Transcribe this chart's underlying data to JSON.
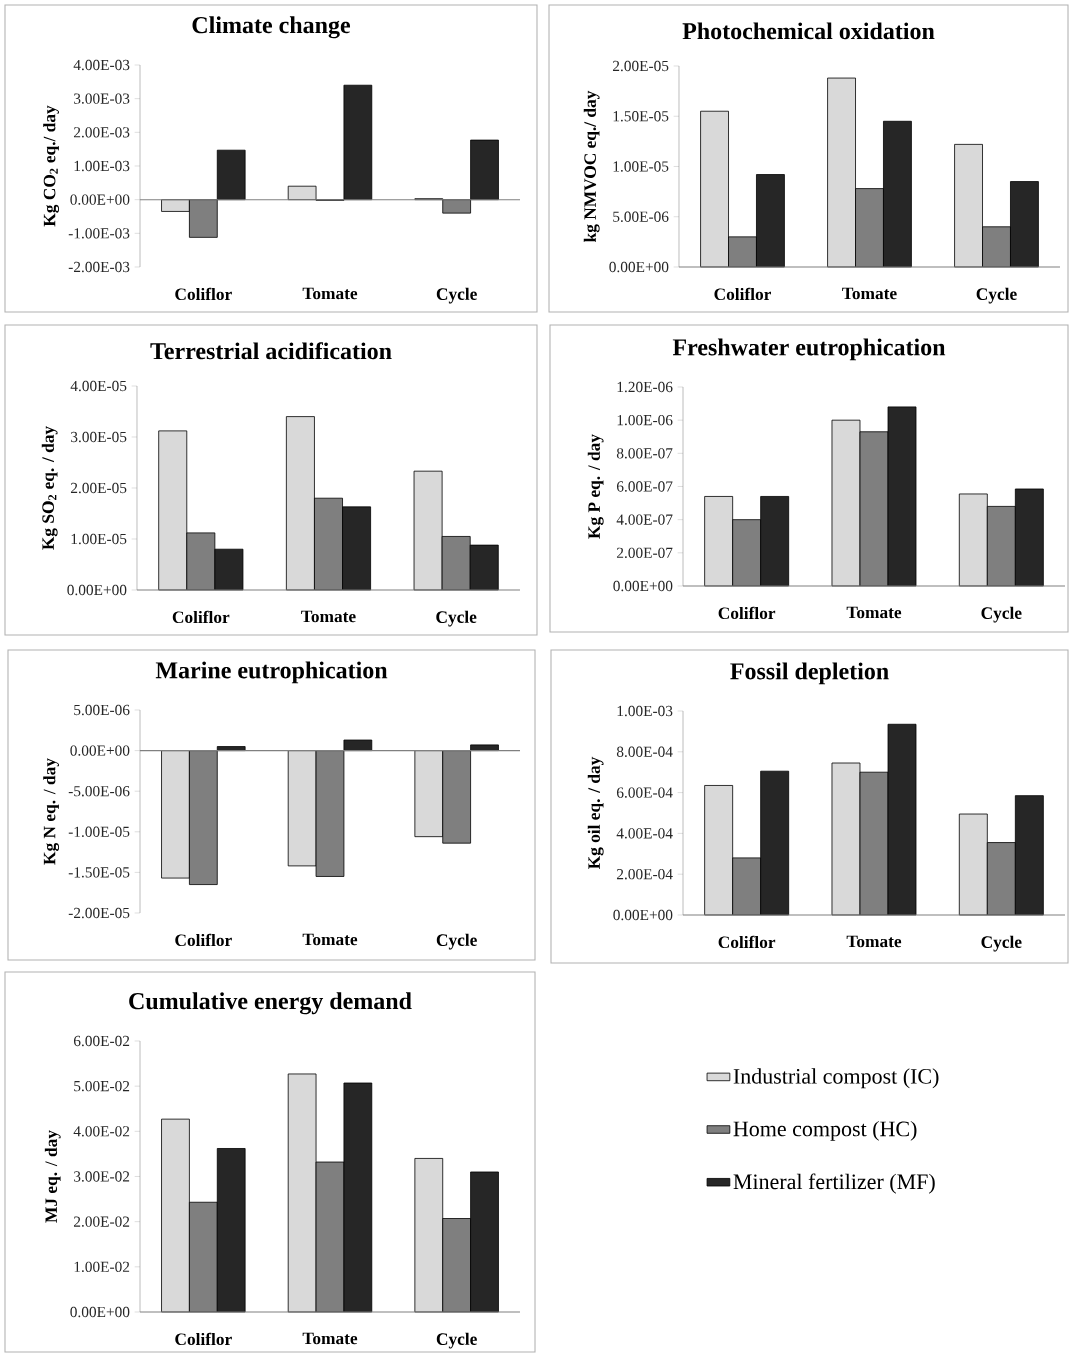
{
  "chart_data": [
    {
      "type": "bar",
      "title": "Climate change",
      "ylabel": "Kg CO$_{2}$ eq./ day",
      "categories": [
        "Coliflor",
        "Tomate",
        "Cycle"
      ],
      "ylim": [
        -0.002,
        0.004
      ],
      "yticks": [
        {
          "value": -0.002,
          "label": "-2.00E-03"
        },
        {
          "value": -0.001,
          "label": "-1.00E-03"
        },
        {
          "value": 0,
          "label": "0.00E+00"
        },
        {
          "value": 0.001,
          "label": "1.00E-03"
        },
        {
          "value": 0.002,
          "label": "2.00E-03"
        },
        {
          "value": 0.003,
          "label": "3.00E-03"
        },
        {
          "value": 0.004,
          "label": "4.00E-03"
        }
      ],
      "series": [
        {
          "color": "#d9d9d9",
          "values": [
            -0.00035,
            0.0004,
            3e-05
          ]
        },
        {
          "color": "#7f7f7f",
          "values": [
            -0.00112,
            -2e-05,
            -0.0004
          ]
        },
        {
          "color": "#262626",
          "values": [
            0.00147,
            0.0034,
            0.00177
          ]
        }
      ]
    },
    {
      "type": "bar",
      "title": "Photochemical oxidation",
      "ylabel": "kg NMVOC eq./ day",
      "categories": [
        "Coliflor",
        "Tomate",
        "Cycle"
      ],
      "ylim": [
        0,
        2e-05
      ],
      "yticks": [
        {
          "value": 0,
          "label": "0.00E+00"
        },
        {
          "value": 5e-06,
          "label": "5.00E-06"
        },
        {
          "value": 1e-05,
          "label": "1.00E-05"
        },
        {
          "value": 1.5e-05,
          "label": "1.50E-05"
        },
        {
          "value": 2e-05,
          "label": "2.00E-05"
        }
      ],
      "series": [
        {
          "color": "#d9d9d9",
          "values": [
            1.55e-05,
            1.88e-05,
            1.22e-05
          ]
        },
        {
          "color": "#7f7f7f",
          "values": [
            3e-06,
            7.8e-06,
            4e-06
          ]
        },
        {
          "color": "#262626",
          "values": [
            9.2e-06,
            1.45e-05,
            8.5e-06
          ]
        }
      ]
    },
    {
      "type": "bar",
      "title": "Terrestrial acidification",
      "ylabel": "Kg SO$_{2}$ eq. / day",
      "categories": [
        "Coliflor",
        "Tomate",
        "Cycle"
      ],
      "ylim": [
        0,
        4e-05
      ],
      "yticks": [
        {
          "value": 0,
          "label": "0.00E+00"
        },
        {
          "value": 1e-05,
          "label": "1.00E-05"
        },
        {
          "value": 2e-05,
          "label": "2.00E-05"
        },
        {
          "value": 3e-05,
          "label": "3.00E-05"
        },
        {
          "value": 4e-05,
          "label": "4.00E-05"
        }
      ],
      "series": [
        {
          "color": "#d9d9d9",
          "values": [
            3.12e-05,
            3.4e-05,
            2.33e-05
          ]
        },
        {
          "color": "#7f7f7f",
          "values": [
            1.12e-05,
            1.8e-05,
            1.05e-05
          ]
        },
        {
          "color": "#262626",
          "values": [
            8e-06,
            1.63e-05,
            8.8e-06
          ]
        }
      ]
    },
    {
      "type": "bar",
      "title": "Freshwater eutrophication",
      "ylabel": "Kg P eq. / day",
      "categories": [
        "Coliflor",
        "Tomate",
        "Cycle"
      ],
      "ylim": [
        0,
        1.2e-06
      ],
      "yticks": [
        {
          "value": 0,
          "label": "0.00E+00"
        },
        {
          "value": 2e-07,
          "label": "2.00E-07"
        },
        {
          "value": 4e-07,
          "label": "4.00E-07"
        },
        {
          "value": 6e-07,
          "label": "6.00E-07"
        },
        {
          "value": 8e-07,
          "label": "8.00E-07"
        },
        {
          "value": 1e-06,
          "label": "1.00E-06"
        },
        {
          "value": 1.2e-06,
          "label": "1.20E-06"
        }
      ],
      "series": [
        {
          "color": "#d9d9d9",
          "values": [
            5.4e-07,
            1e-06,
            5.55e-07
          ]
        },
        {
          "color": "#7f7f7f",
          "values": [
            4e-07,
            9.3e-07,
            4.8e-07
          ]
        },
        {
          "color": "#262626",
          "values": [
            5.4e-07,
            1.08e-06,
            5.85e-07
          ]
        }
      ]
    },
    {
      "type": "bar",
      "title": "Marine eutrophication",
      "ylabel": "Kg N eq. / day",
      "categories": [
        "Coliflor",
        "Tomate",
        "Cycle"
      ],
      "ylim": [
        -2e-05,
        5e-06
      ],
      "yticks": [
        {
          "value": -2e-05,
          "label": "-2.00E-05"
        },
        {
          "value": -1.5e-05,
          "label": "-1.50E-05"
        },
        {
          "value": -1e-05,
          "label": "-1.00E-05"
        },
        {
          "value": -5e-06,
          "label": "-5.00E-06"
        },
        {
          "value": 0,
          "label": "0.00E+00"
        },
        {
          "value": 5e-06,
          "label": "5.00E-06"
        }
      ],
      "series": [
        {
          "color": "#d9d9d9",
          "values": [
            -1.57e-05,
            -1.42e-05,
            -1.06e-05
          ]
        },
        {
          "color": "#7f7f7f",
          "values": [
            -1.65e-05,
            -1.55e-05,
            -1.14e-05
          ]
        },
        {
          "color": "#262626",
          "values": [
            5e-07,
            1.3e-06,
            7e-07
          ]
        }
      ]
    },
    {
      "type": "bar",
      "title": "Fossil depletion",
      "ylabel": "Kg oil eq. / day",
      "categories": [
        "Coliflor",
        "Tomate",
        "Cycle"
      ],
      "ylim": [
        0,
        0.001
      ],
      "yticks": [
        {
          "value": 0,
          "label": "0.00E+00"
        },
        {
          "value": 0.0002,
          "label": "2.00E-04"
        },
        {
          "value": 0.0004,
          "label": "4.00E-04"
        },
        {
          "value": 0.0006,
          "label": "6.00E-04"
        },
        {
          "value": 0.0008,
          "label": "8.00E-04"
        },
        {
          "value": 0.001,
          "label": "1.00E-03"
        }
      ],
      "series": [
        {
          "color": "#d9d9d9",
          "values": [
            0.000635,
            0.000745,
            0.000495
          ]
        },
        {
          "color": "#7f7f7f",
          "values": [
            0.00028,
            0.0007,
            0.000355
          ]
        },
        {
          "color": "#262626",
          "values": [
            0.000705,
            0.000935,
            0.000585
          ]
        }
      ]
    },
    {
      "type": "bar",
      "title": "Cumulative energy demand",
      "ylabel": "MJ eq. / day",
      "categories": [
        "Coliflor",
        "Tomate",
        "Cycle"
      ],
      "ylim": [
        0,
        0.06
      ],
      "yticks": [
        {
          "value": 0,
          "label": "0.00E+00"
        },
        {
          "value": 0.01,
          "label": "1.00E-02"
        },
        {
          "value": 0.02,
          "label": "2.00E-02"
        },
        {
          "value": 0.03,
          "label": "3.00E-02"
        },
        {
          "value": 0.04,
          "label": "4.00E-02"
        },
        {
          "value": 0.05,
          "label": "5.00E-02"
        },
        {
          "value": 0.06,
          "label": "6.00E-02"
        }
      ],
      "legend": "right",
      "series": [
        {
          "name": "Industrial compost (IC)",
          "color": "#d9d9d9",
          "values": [
            0.0427,
            0.0527,
            0.034
          ]
        },
        {
          "name": "Home compost (HC)",
          "color": "#7f7f7f",
          "values": [
            0.0243,
            0.0332,
            0.0207
          ]
        },
        {
          "name": "Mineral fertilizer (MF)",
          "color": "#262626",
          "values": [
            0.0362,
            0.0507,
            0.031
          ]
        }
      ]
    }
  ]
}
